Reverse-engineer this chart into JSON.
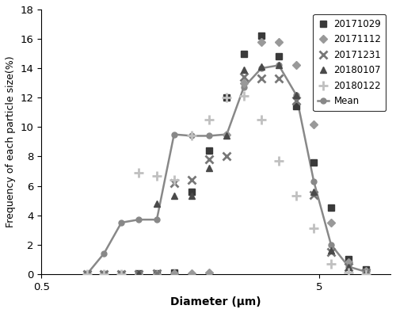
{
  "x_diameter": [
    0.73,
    0.84,
    0.97,
    1.12,
    1.3,
    1.5,
    1.74,
    2.0,
    2.32,
    2.67,
    3.09,
    3.57,
    4.12,
    4.77,
    5.5,
    6.36,
    7.35
  ],
  "series_20171029": [
    0.0,
    0.0,
    0.0,
    0.05,
    0.05,
    0.1,
    5.6,
    8.4,
    12.0,
    15.0,
    16.2,
    14.8,
    11.4,
    7.6,
    4.5,
    1.0,
    0.3
  ],
  "series_20171112": [
    0.0,
    0.0,
    0.0,
    0.0,
    0.0,
    0.05,
    0.05,
    0.1,
    9.5,
    13.0,
    15.8,
    15.8,
    14.2,
    10.2,
    3.5,
    0.8,
    0.2
  ],
  "series_20171231": [
    0.0,
    0.0,
    0.0,
    0.0,
    0.05,
    6.2,
    6.4,
    7.8,
    8.0,
    13.4,
    13.3,
    13.3,
    11.8,
    5.4,
    1.5,
    0.5,
    0.1
  ],
  "series_20180107": [
    0.0,
    0.0,
    0.0,
    0.05,
    4.8,
    5.3,
    5.3,
    7.2,
    9.4,
    13.9,
    14.1,
    14.2,
    12.2,
    5.6,
    1.6,
    0.5,
    0.1
  ],
  "series_20180122": [
    0.0,
    0.0,
    0.0,
    6.9,
    6.7,
    6.4,
    9.4,
    10.5,
    12.0,
    12.1,
    10.5,
    7.7,
    5.3,
    3.1,
    0.7,
    0.1,
    0.0
  ],
  "series_mean": [
    0.0,
    1.4,
    3.5,
    3.7,
    3.7,
    9.5,
    9.4,
    9.4,
    9.5,
    12.7,
    14.0,
    14.2,
    12.2,
    6.3,
    2.0,
    0.5,
    0.15
  ],
  "xlabel": "Diameter (μm)",
  "ylabel": "Frequency of each particle size(%)",
  "xlim_low": 0.5,
  "xlim_high": 9.0,
  "ylim_low": 0,
  "ylim_high": 18,
  "yticks": [
    0,
    2,
    4,
    6,
    8,
    10,
    12,
    14,
    16,
    18
  ],
  "color_20171029": "#3a3a3a",
  "color_20171112": "#999999",
  "color_20171231": "#777777",
  "color_20180107": "#4a4a4a",
  "color_20180122": "#c0c0c0",
  "color_mean": "#888888",
  "legend_labels": [
    "20171029",
    "20171112",
    "20171231",
    "20180107",
    "20180122",
    "Mean"
  ]
}
